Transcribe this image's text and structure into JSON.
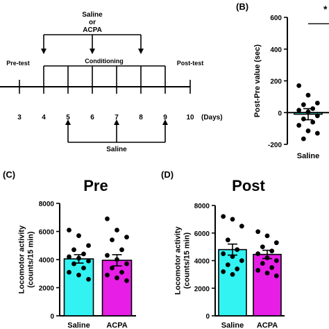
{
  "timeline": {
    "top_label_line1": "Saline",
    "top_label_line2": "or",
    "top_label_line3": "ACPA",
    "pretest_label": "Pre-test",
    "conditioning_label": "Conditioning",
    "posttest_label": "Post-test",
    "days": [
      "3",
      "4",
      "5",
      "6",
      "7",
      "8",
      "9",
      "10"
    ],
    "days_unit": "(Days)",
    "bottom_label": "Saline"
  },
  "chart_data": [
    {
      "panel": "(B)",
      "type": "bar",
      "title": "",
      "ylabel": "Post-Pre value (sec)",
      "ylim": [
        -200,
        600
      ],
      "yticks": [
        -200,
        0,
        200,
        400,
        600
      ],
      "categories": [
        "Saline"
      ],
      "values": [
        -10
      ],
      "sem": [
        35
      ],
      "points": [
        170,
        110,
        60,
        50,
        25,
        15,
        5,
        -20,
        -40,
        -60,
        -80,
        -115,
        -130,
        -165
      ],
      "significance": "*",
      "bar_colors": [
        "#33e6e6"
      ]
    },
    {
      "panel": "(C)",
      "type": "bar",
      "title": "Pre",
      "ylabel": "Locomotor activity\n(counts/15 min)",
      "ylim": [
        0,
        8000
      ],
      "yticks": [
        0,
        2000,
        4000,
        6000,
        8000
      ],
      "categories": [
        "Saline",
        "ACPA"
      ],
      "values": [
        4050,
        3950
      ],
      "sem": [
        300,
        400
      ],
      "points": [
        [
          6100,
          5700,
          5000,
          4700,
          4400,
          4200,
          4100,
          3900,
          3700,
          3400,
          3100,
          2900,
          2600
        ],
        [
          6900,
          6100,
          5600,
          5400,
          4700,
          4300,
          4000,
          3700,
          3400,
          3100,
          2900,
          2700,
          2500
        ]
      ],
      "bar_colors": [
        "#33f2f2",
        "#e61ee6"
      ]
    },
    {
      "panel": "(D)",
      "type": "bar",
      "title": "Post",
      "ylabel": "Locomotor activity\n(counts/15 min)",
      "ylim": [
        0,
        8000
      ],
      "yticks": [
        0,
        2000,
        4000,
        6000,
        8000
      ],
      "categories": [
        "Saline",
        "ACPA"
      ],
      "values": [
        4800,
        4450
      ],
      "sem": [
        400,
        300
      ],
      "points": [
        [
          7200,
          7000,
          6500,
          5500,
          4800,
          4500,
          4300,
          4000,
          3700,
          3400,
          3200,
          3000
        ],
        [
          6100,
          5800,
          5300,
          5000,
          4700,
          4500,
          4200,
          4000,
          3800,
          3500,
          3300,
          3100,
          2900
        ]
      ],
      "bar_colors": [
        "#33f2f2",
        "#e61ee6"
      ]
    }
  ]
}
